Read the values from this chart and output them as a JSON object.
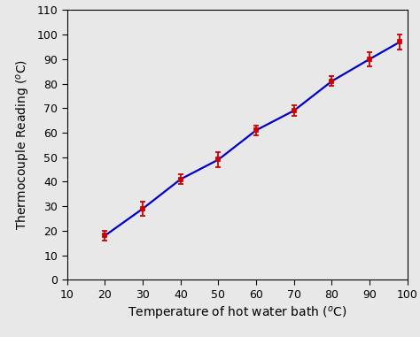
{
  "x": [
    20,
    30,
    40,
    50,
    60,
    70,
    80,
    90,
    98
  ],
  "y": [
    18,
    29,
    41,
    49,
    61,
    69,
    81,
    90,
    97
  ],
  "yerr": [
    2,
    3,
    2,
    3,
    2,
    2,
    2,
    3,
    3
  ],
  "line_color": "#0000cc",
  "marker_color": "#cc0000",
  "marker_style": "s",
  "marker_size": 3.5,
  "line_width": 1.6,
  "capsize": 2.5,
  "elinewidth": 1.3,
  "xlabel": "Temperature of hot water bath ($^o$C)",
  "ylabel": "Thermocouple Reading ($^o$C)",
  "xlim": [
    10,
    100
  ],
  "ylim": [
    0,
    110
  ],
  "xticks": [
    10,
    20,
    30,
    40,
    50,
    60,
    70,
    80,
    90,
    100
  ],
  "yticks": [
    0,
    10,
    20,
    30,
    40,
    50,
    60,
    70,
    80,
    90,
    100,
    110
  ],
  "tick_fontsize": 9,
  "label_fontsize": 10,
  "bg_color": "#e8e8e8",
  "axes_bg_color": "#e8e8e8"
}
